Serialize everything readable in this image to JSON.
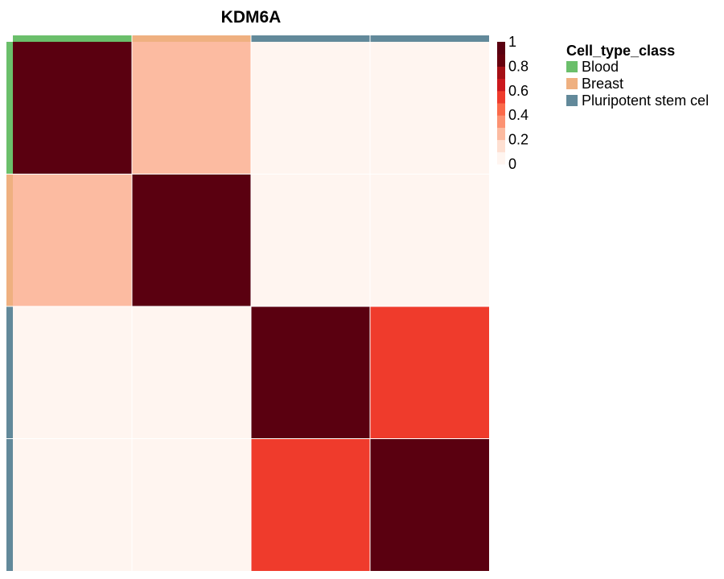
{
  "chart_data": {
    "type": "heatmap",
    "title": "KDM6A",
    "xlabel": "",
    "ylabel": "",
    "n_samples": 4,
    "sample_classes": [
      "Blood",
      "Breast",
      "Pluripotent stem cel",
      "Pluripotent stem cel"
    ],
    "values": [
      [
        1.0,
        0.28,
        0.0,
        0.0
      ],
      [
        0.28,
        1.0,
        0.0,
        0.0
      ],
      [
        0.0,
        0.0,
        1.0,
        0.5
      ],
      [
        0.0,
        0.0,
        0.5,
        1.0
      ]
    ],
    "color_scale": {
      "min": 0,
      "max": 1,
      "ticks": [
        "1",
        "0.8",
        "0.6",
        "0.4",
        "0.2",
        "0"
      ],
      "colors": [
        "#FFF5F0",
        "#FEE0D2",
        "#FCBBA1",
        "#FC9272",
        "#FB6A4A",
        "#EF3B2C",
        "#CB181D",
        "#A50F15",
        "#67000D",
        "#5A0010"
      ]
    },
    "annotation_legend": {
      "title": "Cell_type_class",
      "placement": "right",
      "entries": [
        {
          "label": "Blood",
          "color": "#6BBF6B"
        },
        {
          "label": "Breast",
          "color": "#EFB080"
        },
        {
          "label": "Pluripotent stem cel",
          "color": "#62899A"
        }
      ]
    }
  }
}
